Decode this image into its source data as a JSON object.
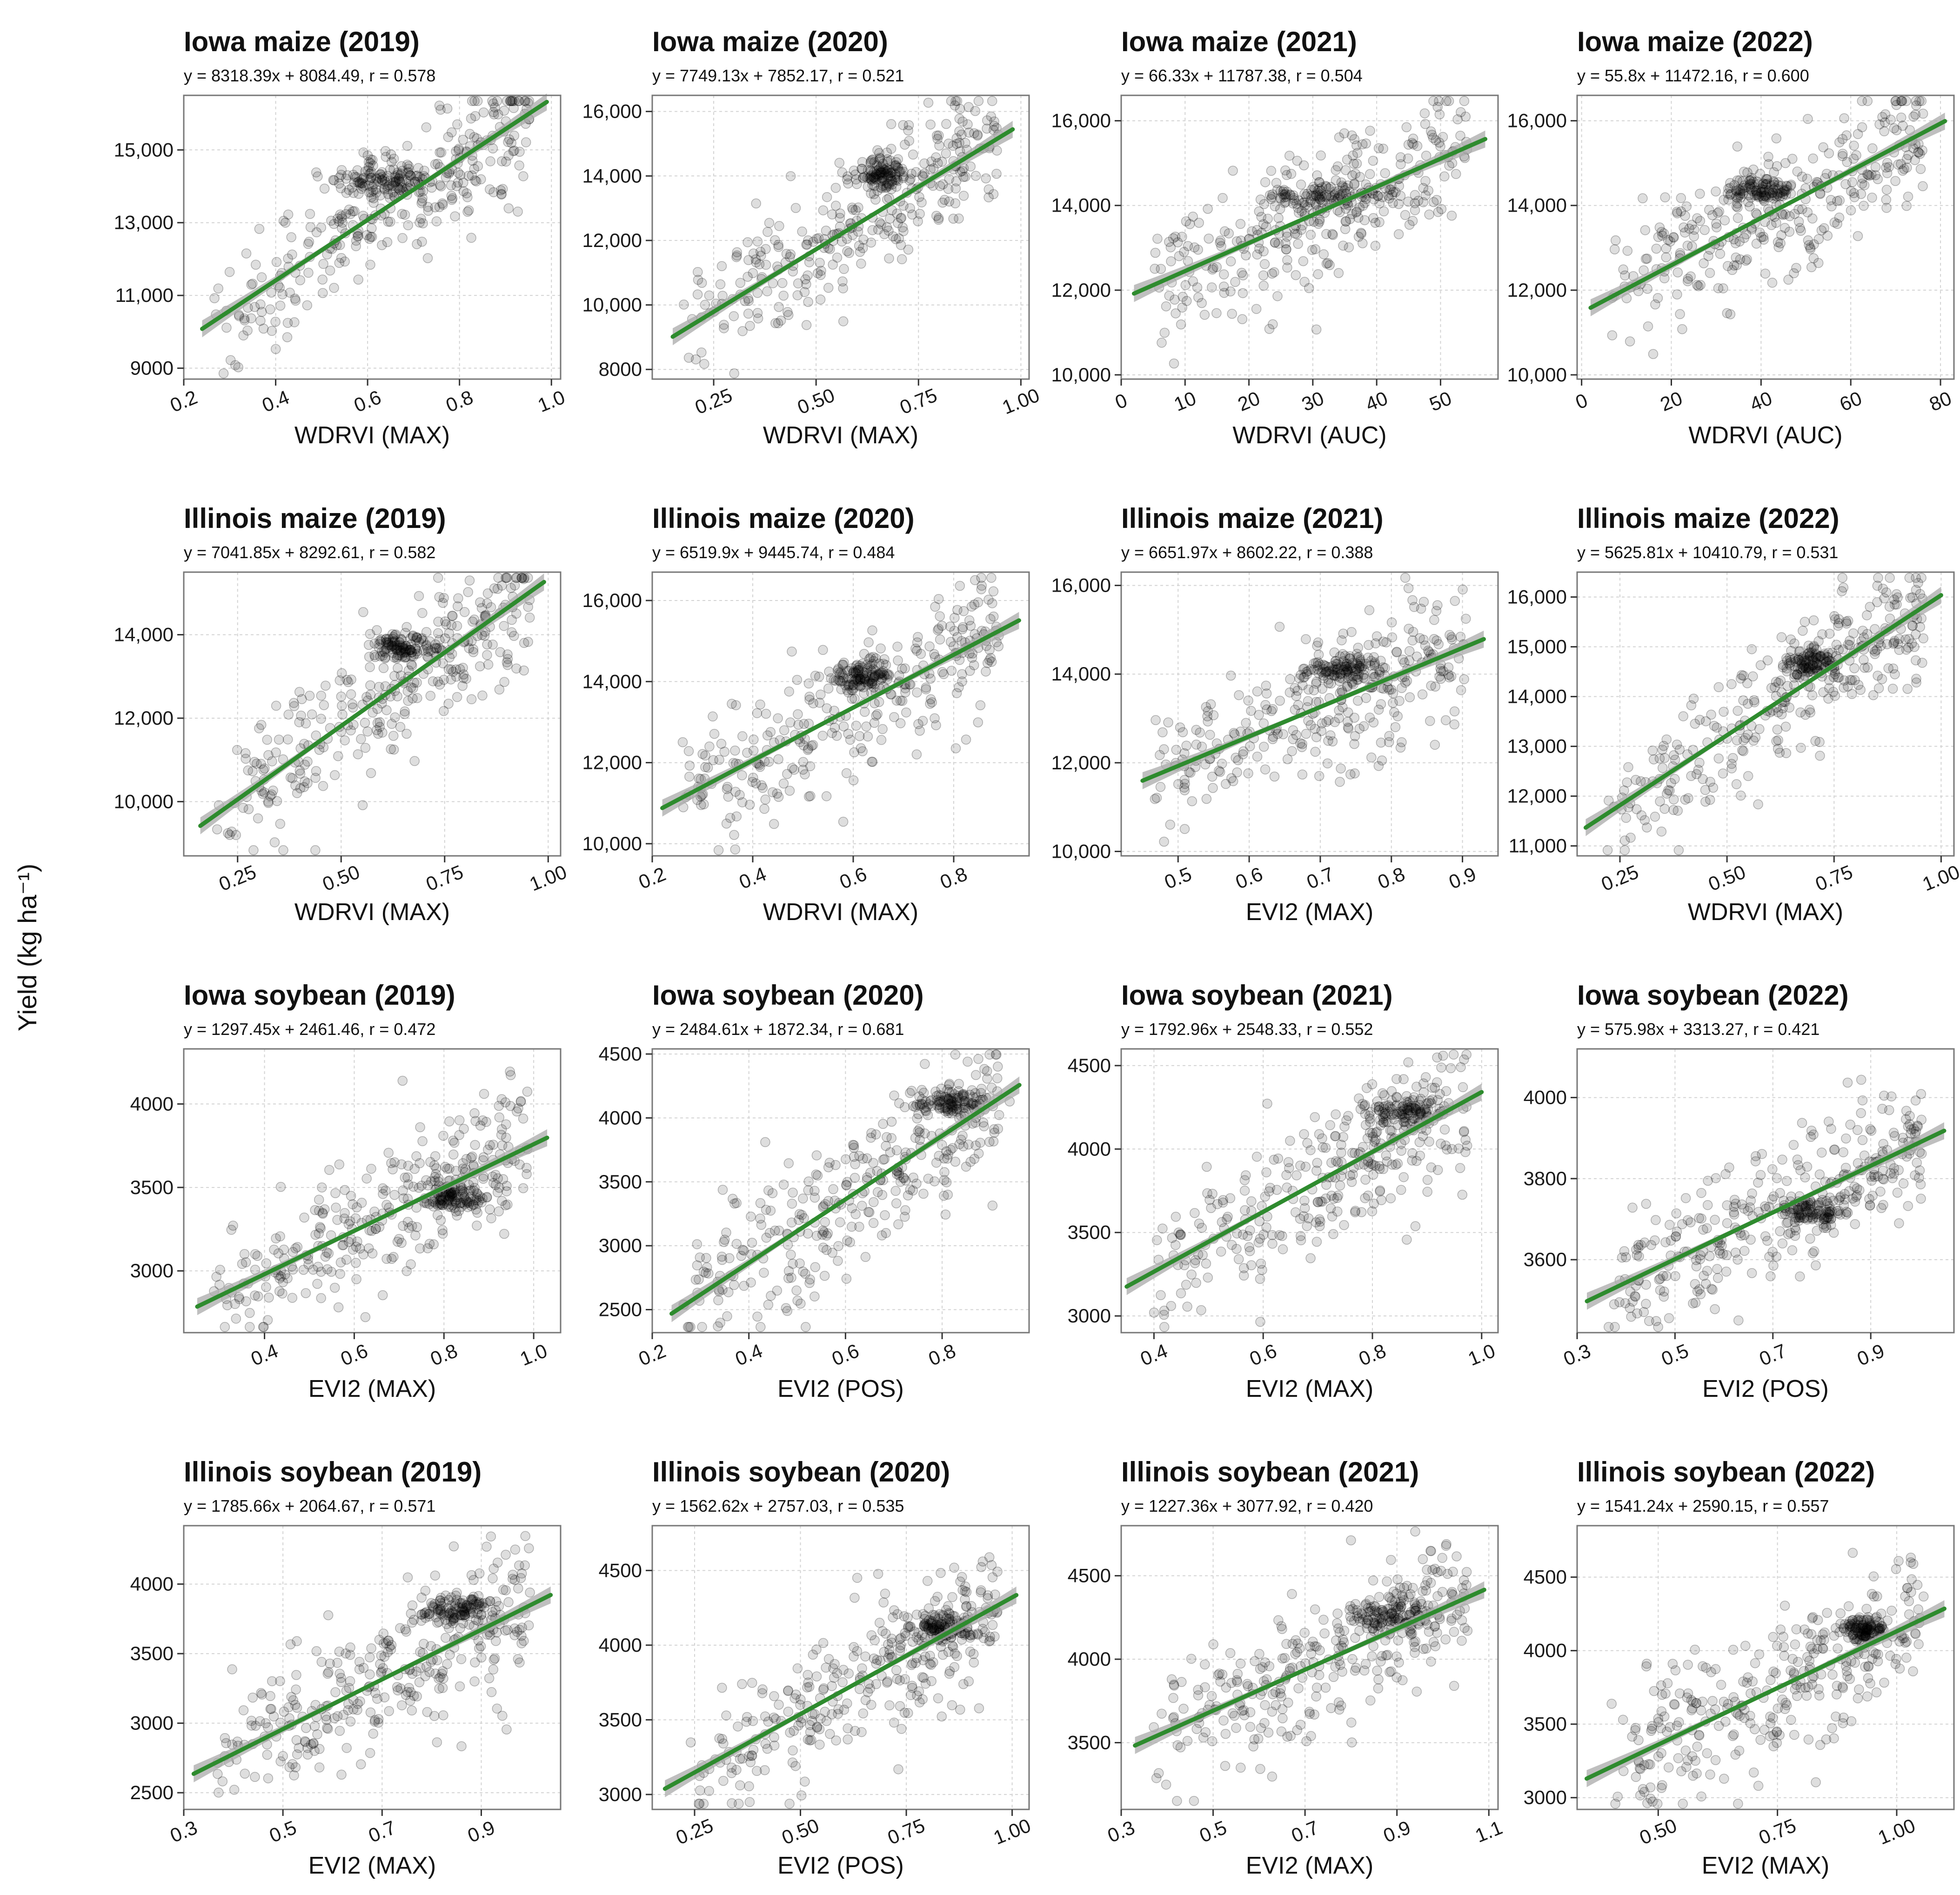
{
  "figure": {
    "y_axis_label": "Yield (kg ha⁻¹)",
    "colors": {
      "points": "#000000",
      "fit_line": "#2e8b2e",
      "ci_band": "#a9a9a9",
      "grid": "#d3d3d3",
      "frame": "#777777"
    }
  },
  "chart_data": [
    {
      "type": "scatter",
      "title": "Iowa maize (2019)",
      "equation": "y = 8318.39x + 8084.49, r = 0.578",
      "xlabel": "WDRVI (MAX)",
      "ylabel": "Yield (kg ha⁻¹)",
      "xlim": [
        0.2,
        1.02
      ],
      "ylim": [
        8700,
        16500
      ],
      "xticks": [
        0.2,
        0.4,
        0.6,
        0.8,
        1.0
      ],
      "xtick_labels": [
        "0.2",
        "0.4",
        "0.6",
        "0.8",
        "1.0"
      ],
      "yticks": [
        9000,
        11000,
        13000,
        15000
      ],
      "ytick_labels": [
        "9000",
        "11,000",
        "13,000",
        "15,000"
      ],
      "rotate_x": true,
      "slope": 8318.39,
      "intercept": 8084.49,
      "r": 0.578,
      "fit_range": [
        0.24,
        0.99
      ],
      "cluster": {
        "x": 0.64,
        "y": 14150,
        "w": 0.12
      }
    },
    {
      "type": "scatter",
      "title": "Iowa maize (2020)",
      "equation": "y = 7749.13x + 7852.17, r = 0.521",
      "xlabel": "WDRVI (MAX)",
      "ylabel": "Yield (kg ha⁻¹)",
      "xlim": [
        0.1,
        1.02
      ],
      "ylim": [
        7700,
        16500
      ],
      "xticks": [
        0.25,
        0.5,
        0.75,
        1.0
      ],
      "xtick_labels": [
        "0.25",
        "0.50",
        "0.75",
        "1.00"
      ],
      "yticks": [
        8000,
        10000,
        12000,
        14000,
        16000
      ],
      "ytick_labels": [
        "8000",
        "10,000",
        "12,000",
        "14,000",
        "16,000"
      ],
      "rotate_x": true,
      "slope": 7749.13,
      "intercept": 7852.17,
      "r": 0.521,
      "fit_range": [
        0.15,
        0.98
      ],
      "cluster": {
        "x": 0.67,
        "y": 14100,
        "w": 0.08
      }
    },
    {
      "type": "scatter",
      "title": "Iowa maize (2021)",
      "equation": "y = 66.33x + 11787.38, r = 0.504",
      "xlabel": "WDRVI (AUC)",
      "ylabel": "Yield (kg ha⁻¹)",
      "xlim": [
        0,
        59
      ],
      "ylim": [
        9900,
        16600
      ],
      "xticks": [
        0,
        10,
        20,
        30,
        40,
        50
      ],
      "xtick_labels": [
        "0",
        "10",
        "20",
        "30",
        "40",
        "50"
      ],
      "yticks": [
        10000,
        12000,
        14000,
        16000
      ],
      "ytick_labels": [
        "10,000",
        "12,000",
        "14,000",
        "16,000"
      ],
      "rotate_x": true,
      "slope": 66.33,
      "intercept": 11787.38,
      "r": 0.504,
      "fit_range": [
        2,
        57
      ],
      "cluster": {
        "x": 33,
        "y": 14200,
        "w": 10
      }
    },
    {
      "type": "scatter",
      "title": "Iowa maize (2022)",
      "equation": "y = 55.8x + 11472.16, r = 0.600",
      "xlabel": "WDRVI (AUC)",
      "ylabel": "Yield (kg ha⁻¹)",
      "xlim": [
        -1,
        83
      ],
      "ylim": [
        9900,
        16600
      ],
      "xticks": [
        0,
        20,
        40,
        60,
        80
      ],
      "xtick_labels": [
        "0",
        "20",
        "40",
        "60",
        "80"
      ],
      "yticks": [
        10000,
        12000,
        14000,
        16000
      ],
      "ytick_labels": [
        "10,000",
        "12,000",
        "14,000",
        "16,000"
      ],
      "rotate_x": true,
      "slope": 55.8,
      "intercept": 11472.16,
      "r": 0.6,
      "fit_range": [
        2,
        81
      ],
      "cluster": {
        "x": 40,
        "y": 14400,
        "w": 8
      }
    },
    {
      "type": "scatter",
      "title": "Illinois maize (2019)",
      "equation": "y = 7041.85x + 8292.61, r = 0.582",
      "xlabel": "WDRVI (MAX)",
      "ylabel": "Yield (kg ha⁻¹)",
      "xlim": [
        0.12,
        1.03
      ],
      "ylim": [
        8700,
        15500
      ],
      "xticks": [
        0.25,
        0.5,
        0.75,
        1.0
      ],
      "xtick_labels": [
        "0.25",
        "0.50",
        "0.75",
        "1.00"
      ],
      "yticks": [
        10000,
        12000,
        14000
      ],
      "ytick_labels": [
        "10,000",
        "12,000",
        "14,000"
      ],
      "rotate_x": true,
      "slope": 7041.85,
      "intercept": 8292.61,
      "r": 0.582,
      "fit_range": [
        0.16,
        0.99
      ],
      "cluster": {
        "x": 0.65,
        "y": 13700,
        "w": 0.08
      }
    },
    {
      "type": "scatter",
      "title": "Illinois maize (2020)",
      "equation": "y = 6519.9x + 9445.74, r = 0.484",
      "xlabel": "WDRVI (MAX)",
      "ylabel": "Yield (kg ha⁻¹)",
      "xlim": [
        0.2,
        0.95
      ],
      "ylim": [
        9700,
        16700
      ],
      "xticks": [
        0.2,
        0.4,
        0.6,
        0.8
      ],
      "xtick_labels": [
        "0.2",
        "0.4",
        "0.6",
        "0.8"
      ],
      "yticks": [
        10000,
        12000,
        14000,
        16000
      ],
      "ytick_labels": [
        "10,000",
        "12,000",
        "14,000",
        "16,000"
      ],
      "rotate_x": true,
      "slope": 6519.9,
      "intercept": 9445.74,
      "r": 0.484,
      "fit_range": [
        0.22,
        0.93
      ],
      "cluster": {
        "x": 0.62,
        "y": 14100,
        "w": 0.06
      }
    },
    {
      "type": "scatter",
      "title": "Illinois maize (2021)",
      "equation": "y = 6651.97x + 8602.22, r = 0.388",
      "xlabel": "EVI2 (MAX)",
      "ylabel": "Yield (kg ha⁻¹)",
      "xlim": [
        0.42,
        0.95
      ],
      "ylim": [
        9900,
        16300
      ],
      "xticks": [
        0.5,
        0.6,
        0.7,
        0.8,
        0.9
      ],
      "xtick_labels": [
        "0.5",
        "0.6",
        "0.7",
        "0.8",
        "0.9"
      ],
      "yticks": [
        10000,
        12000,
        14000,
        16000
      ],
      "ytick_labels": [
        "10,000",
        "12,000",
        "14,000",
        "16,000"
      ],
      "rotate_x": true,
      "slope": 6651.97,
      "intercept": 8602.22,
      "r": 0.388,
      "fit_range": [
        0.45,
        0.93
      ],
      "cluster": {
        "x": 0.73,
        "y": 14100,
        "w": 0.05
      }
    },
    {
      "type": "scatter",
      "title": "Illinois maize (2022)",
      "equation": "y = 5625.81x + 10410.79, r = 0.531",
      "xlabel": "WDRVI (MAX)",
      "ylabel": "Yield (kg ha⁻¹)",
      "xlim": [
        0.15,
        1.03
      ],
      "ylim": [
        10800,
        16500
      ],
      "xticks": [
        0.25,
        0.5,
        0.75,
        1.0
      ],
      "xtick_labels": [
        "0.25",
        "0.50",
        "0.75",
        "1.00"
      ],
      "yticks": [
        11000,
        12000,
        13000,
        14000,
        15000,
        16000
      ],
      "ytick_labels": [
        "11,000",
        "12,000",
        "13,000",
        "14,000",
        "15,000",
        "16,000"
      ],
      "rotate_x": true,
      "slope": 5625.81,
      "intercept": 10410.79,
      "r": 0.531,
      "fit_range": [
        0.17,
        1.0
      ],
      "cluster": {
        "x": 0.7,
        "y": 14700,
        "w": 0.06
      }
    },
    {
      "type": "scatter",
      "title": "Iowa soybean (2019)",
      "equation": "y = 1297.45x + 2461.46, r = 0.472",
      "xlabel": "EVI2 (MAX)",
      "ylabel": "Yield (kg ha⁻¹)",
      "xlim": [
        0.22,
        1.06
      ],
      "ylim": [
        2630,
        4330
      ],
      "xticks": [
        0.4,
        0.6,
        0.8,
        1.0
      ],
      "xtick_labels": [
        "0.4",
        "0.6",
        "0.8",
        "1.0"
      ],
      "yticks": [
        3000,
        3500,
        4000
      ],
      "ytick_labels": [
        "3000",
        "3500",
        "4000"
      ],
      "rotate_x": true,
      "slope": 1297.45,
      "intercept": 2461.46,
      "r": 0.472,
      "fit_range": [
        0.25,
        1.03
      ],
      "cluster": {
        "x": 0.83,
        "y": 3440,
        "w": 0.07
      }
    },
    {
      "type": "scatter",
      "title": "Iowa soybean (2020)",
      "equation": "y = 2484.61x + 1872.34, r = 0.681",
      "xlabel": "EVI2 (POS)",
      "ylabel": "Yield (kg ha⁻¹)",
      "xlim": [
        0.2,
        0.98
      ],
      "ylim": [
        2320,
        4540
      ],
      "xticks": [
        0.2,
        0.4,
        0.6,
        0.8
      ],
      "xtick_labels": [
        "0.2",
        "0.4",
        "0.6",
        "0.8"
      ],
      "yticks": [
        2500,
        3000,
        3500,
        4000,
        4500
      ],
      "ytick_labels": [
        "2500",
        "3000",
        "3500",
        "4000",
        "4500"
      ],
      "rotate_x": true,
      "slope": 2484.61,
      "intercept": 1872.34,
      "r": 0.681,
      "fit_range": [
        0.24,
        0.96
      ],
      "cluster": {
        "x": 0.82,
        "y": 4120,
        "w": 0.09
      }
    },
    {
      "type": "scatter",
      "title": "Iowa soybean (2021)",
      "equation": "y = 1792.96x + 2548.33, r = 0.552",
      "xlabel": "EVI2 (MAX)",
      "ylabel": "Yield (kg ha⁻¹)",
      "xlim": [
        0.34,
        1.03
      ],
      "ylim": [
        2900,
        4600
      ],
      "xticks": [
        0.4,
        0.6,
        0.8,
        1.0
      ],
      "xtick_labels": [
        "0.4",
        "0.6",
        "0.8",
        "1.0"
      ],
      "yticks": [
        3000,
        3500,
        4000,
        4500
      ],
      "ytick_labels": [
        "3000",
        "3500",
        "4000",
        "4500"
      ],
      "rotate_x": true,
      "slope": 1792.96,
      "intercept": 2548.33,
      "r": 0.552,
      "fit_range": [
        0.35,
        1.0
      ],
      "cluster": {
        "x": 0.86,
        "y": 4230,
        "w": 0.08
      }
    },
    {
      "type": "scatter",
      "title": "Iowa soybean (2022)",
      "equation": "y = 575.98x + 3313.27, r = 0.421",
      "xlabel": "EVI2 (POS)",
      "ylabel": "Yield (kg ha⁻¹)",
      "xlim": [
        0.3,
        1.07
      ],
      "ylim": [
        3420,
        4120
      ],
      "xticks": [
        0.3,
        0.5,
        0.7,
        0.9
      ],
      "xtick_labels": [
        "0.3",
        "0.5",
        "0.7",
        "0.9"
      ],
      "yticks": [
        3600,
        3800,
        4000
      ],
      "ytick_labels": [
        "3600",
        "3800",
        "4000"
      ],
      "rotate_x": true,
      "slope": 575.98,
      "intercept": 3313.27,
      "r": 0.421,
      "fit_range": [
        0.32,
        1.05
      ],
      "cluster": {
        "x": 0.78,
        "y": 3720,
        "w": 0.08
      }
    },
    {
      "type": "scatter",
      "title": "Illinois soybean (2019)",
      "equation": "y = 1785.66x + 2064.67, r = 0.571",
      "xlabel": "EVI2 (MAX)",
      "ylabel": "Yield (kg ha⁻¹)",
      "xlim": [
        0.3,
        1.06
      ],
      "ylim": [
        2380,
        4420
      ],
      "xticks": [
        0.3,
        0.5,
        0.7,
        0.9
      ],
      "xtick_labels": [
        "0.3",
        "0.5",
        "0.7",
        "0.9"
      ],
      "yticks": [
        2500,
        3000,
        3500,
        4000
      ],
      "ytick_labels": [
        "2500",
        "3000",
        "3500",
        "4000"
      ],
      "rotate_x": true,
      "slope": 1785.66,
      "intercept": 2064.67,
      "r": 0.571,
      "fit_range": [
        0.32,
        1.04
      ],
      "cluster": {
        "x": 0.85,
        "y": 3820,
        "w": 0.08
      }
    },
    {
      "type": "scatter",
      "title": "Illinois soybean (2020)",
      "equation": "y = 1562.62x + 2757.03, r = 0.535",
      "xlabel": "EVI2 (POS)",
      "ylabel": "Yield (kg ha⁻¹)",
      "xlim": [
        0.15,
        1.04
      ],
      "ylim": [
        2900,
        4800
      ],
      "xticks": [
        0.25,
        0.5,
        0.75,
        1.0
      ],
      "xtick_labels": [
        "0.25",
        "0.50",
        "0.75",
        "1.00"
      ],
      "yticks": [
        3000,
        3500,
        4000,
        4500
      ],
      "ytick_labels": [
        "3000",
        "3500",
        "4000",
        "4500"
      ],
      "rotate_x": true,
      "slope": 1562.62,
      "intercept": 2757.03,
      "r": 0.535,
      "fit_range": [
        0.18,
        1.01
      ],
      "cluster": {
        "x": 0.84,
        "y": 4130,
        "w": 0.08
      }
    },
    {
      "type": "scatter",
      "title": "Illinois soybean (2021)",
      "equation": "y = 1227.36x + 3077.92, r = 0.420",
      "xlabel": "EVI2 (MAX)",
      "ylabel": "Yield (kg ha⁻¹)",
      "xlim": [
        0.3,
        1.12
      ],
      "ylim": [
        3100,
        4800
      ],
      "xticks": [
        0.3,
        0.5,
        0.7,
        0.9,
        1.1
      ],
      "xtick_labels": [
        "0.3",
        "0.5",
        "0.7",
        "0.9",
        "1.1"
      ],
      "yticks": [
        3500,
        4000,
        4500
      ],
      "ytick_labels": [
        "3500",
        "4000",
        "4500"
      ],
      "rotate_x": true,
      "slope": 1227.36,
      "intercept": 3077.92,
      "r": 0.42,
      "fit_range": [
        0.33,
        1.09
      ],
      "cluster": {
        "x": 0.88,
        "y": 4270,
        "w": 0.09
      }
    },
    {
      "type": "scatter",
      "title": "Illinois soybean (2022)",
      "equation": "y = 1541.24x + 2590.15, r = 0.557",
      "xlabel": "EVI2 (MAX)",
      "ylabel": "Yield (kg ha⁻¹)",
      "xlim": [
        0.33,
        1.12
      ],
      "ylim": [
        2920,
        4850
      ],
      "xticks": [
        0.5,
        0.75,
        1.0
      ],
      "xtick_labels": [
        "0.50",
        "0.75",
        "1.00"
      ],
      "yticks": [
        3000,
        3500,
        4000,
        4500
      ],
      "ytick_labels": [
        "3000",
        "3500",
        "4000",
        "4500"
      ],
      "rotate_x": true,
      "slope": 1541.24,
      "intercept": 2590.15,
      "r": 0.557,
      "fit_range": [
        0.35,
        1.1
      ],
      "cluster": {
        "x": 0.93,
        "y": 4150,
        "w": 0.05
      }
    }
  ]
}
